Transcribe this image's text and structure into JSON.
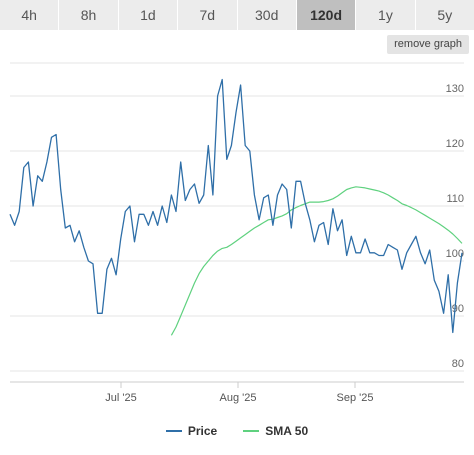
{
  "tabs": [
    {
      "label": "4h",
      "active": false
    },
    {
      "label": "8h",
      "active": false
    },
    {
      "label": "1d",
      "active": false
    },
    {
      "label": "7d",
      "active": false
    },
    {
      "label": "30d",
      "active": false
    },
    {
      "label": "120d",
      "active": true
    },
    {
      "label": "1y",
      "active": false
    },
    {
      "label": "5y",
      "active": false
    }
  ],
  "remove_graph_label": "remove graph",
  "chart_data": {
    "type": "line",
    "x_ticks": [
      "Jul '25",
      "Aug '25",
      "Sep '25"
    ],
    "y_ticks": [
      80,
      90,
      100,
      110,
      120,
      130
    ],
    "ylim": [
      78,
      136
    ],
    "grid": true,
    "legend_position": "bottom-center",
    "series": [
      {
        "name": "Price",
        "color": "#2f6fa8",
        "values": [
          108.5,
          106.5,
          109,
          117,
          118,
          110,
          115.5,
          114.5,
          118,
          122.5,
          123,
          113,
          106,
          106.5,
          103.5,
          105.5,
          102.5,
          100,
          99.5,
          90.5,
          90.5,
          98.5,
          100.5,
          97.5,
          104,
          109,
          110,
          103.5,
          108.5,
          108.5,
          106.5,
          109,
          106.5,
          110,
          107,
          112,
          109,
          118,
          111,
          113,
          114,
          110.5,
          112,
          121,
          112,
          130,
          133,
          118.5,
          121,
          127,
          132,
          121,
          120,
          112,
          107.5,
          111.5,
          112,
          106.5,
          112,
          114,
          113,
          106,
          114.5,
          114.5,
          110.5,
          107.5,
          103.5,
          106.5,
          107,
          103,
          109.5,
          105.5,
          107.5,
          101,
          104.5,
          101.5,
          101.5,
          104,
          101.5,
          101.5,
          101,
          101,
          103,
          102.5,
          102,
          98.5,
          101.5,
          103,
          104.5,
          101.5,
          99.5,
          102,
          96.5,
          94.5,
          90.5,
          97.5,
          87,
          96,
          101.5
        ]
      },
      {
        "name": "SMA 50",
        "color": "#5fd17f",
        "values": [
          86.5,
          88,
          90,
          92,
          94,
          96,
          97.7,
          99,
          100,
          101,
          101.8,
          102.3,
          102.5,
          103,
          103.6,
          104.2,
          104.8,
          105.4,
          106,
          106.5,
          107,
          107.5,
          107.6,
          107.9,
          108.2,
          108.6,
          109.3,
          109.7,
          110.1,
          110.4,
          110.7,
          110.7,
          110.7,
          110.8,
          111,
          111.3,
          111.8,
          112.4,
          113,
          113.3,
          113.5,
          113.4,
          113.3,
          113.1,
          112.9,
          112.7,
          112.4,
          112,
          111.5,
          111,
          110.4,
          110.1,
          109.7,
          109.3,
          108.8,
          108.3,
          107.8,
          107.3,
          106.8,
          106.2,
          105.6,
          104.9,
          104.1,
          103.2
        ]
      }
    ]
  }
}
